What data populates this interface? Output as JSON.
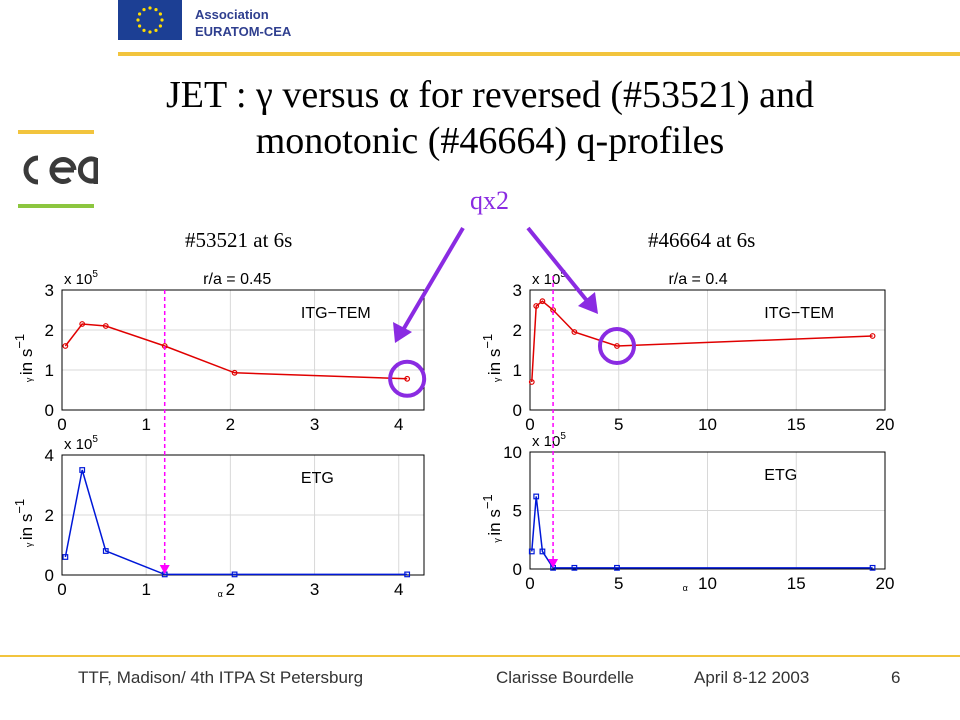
{
  "header": {
    "association_line1": "Association",
    "association_line2": "EURATOM-CEA"
  },
  "title": {
    "line1": "JET : γ versus α for reversed (#53521) and",
    "line2": "monotonic (#46664) q-profiles"
  },
  "annotation": {
    "qx2": "qx2"
  },
  "shots": {
    "left": "#53521 at 6s",
    "right": "#46664 at 6s"
  },
  "footer": {
    "left": "TTF, Madison/ 4th ITPA St Petersburg",
    "center": "Clarisse Bourdelle",
    "date": "April 8-12  2003",
    "page": "6"
  },
  "colors": {
    "itg_series": "#e00000",
    "etg_series": "#0018d8",
    "marker_line": "#ff00ff",
    "highlight": "#8a2be2",
    "rule_yellow": "#f2c43d",
    "cea_green": "#8cc63f"
  },
  "chart_data": [
    {
      "id": "left-top",
      "type": "line",
      "annotation": "r/a = 0.45",
      "label": "ITG−TEM",
      "multiplier": "x 10",
      "exponent": "5",
      "ylabel": "in s",
      "ylabel_exp": "−1",
      "ylabel_prefix": "γ",
      "xlim": [
        0,
        4.3
      ],
      "ylim": [
        0,
        3
      ],
      "xticks": [
        0,
        1,
        2,
        3,
        4
      ],
      "yticks": [
        0,
        1,
        2,
        3
      ],
      "series": [
        {
          "x": [
            0.04,
            0.24,
            0.52,
            1.22,
            2.05,
            4.1
          ],
          "y": [
            1.6,
            2.15,
            2.1,
            1.6,
            0.93,
            0.78
          ]
        }
      ],
      "vline": 1.22,
      "circle_at": [
        4.1,
        0.78
      ]
    },
    {
      "id": "left-bottom",
      "type": "line",
      "label": "ETG",
      "multiplier": "x 10",
      "exponent": "5",
      "ylabel": "in s",
      "ylabel_exp": "−1",
      "ylabel_prefix": "γ",
      "xlabel": "α",
      "xlim": [
        0,
        4.3
      ],
      "ylim": [
        0,
        4
      ],
      "xticks": [
        0,
        1,
        2,
        3,
        4
      ],
      "yticks": [
        0,
        2,
        4
      ],
      "series": [
        {
          "x": [
            0.04,
            0.24,
            0.52,
            1.22,
            2.05,
            4.1
          ],
          "y": [
            0.6,
            3.5,
            0.8,
            0.02,
            0.02,
            0.02
          ]
        }
      ],
      "vline": 1.22
    },
    {
      "id": "right-top",
      "type": "line",
      "annotation": "r/a = 0.4",
      "label": "ITG−TEM",
      "multiplier": "x 10",
      "exponent": "5",
      "ylabel": "in s",
      "ylabel_exp": "−1",
      "ylabel_prefix": "γ",
      "xlim": [
        0,
        20
      ],
      "ylim": [
        0,
        3
      ],
      "xticks": [
        0,
        5,
        10,
        15,
        20
      ],
      "yticks": [
        0,
        1,
        2,
        3
      ],
      "series": [
        {
          "x": [
            0.1,
            0.35,
            0.7,
            1.3,
            2.5,
            4.9,
            19.3
          ],
          "y": [
            0.7,
            2.6,
            2.72,
            2.5,
            1.95,
            1.6,
            1.85
          ]
        }
      ],
      "vline": 1.3,
      "circle_at": [
        4.9,
        1.6
      ]
    },
    {
      "id": "right-bottom",
      "type": "line",
      "label": "ETG",
      "multiplier": "x 10",
      "exponent": "5",
      "ylabel": "in s",
      "ylabel_exp": "−1",
      "ylabel_prefix": "γ",
      "xlabel": "α",
      "xlim": [
        0,
        20
      ],
      "ylim": [
        0,
        10
      ],
      "xticks": [
        0,
        5,
        10,
        15,
        20
      ],
      "yticks": [
        0,
        5,
        10
      ],
      "series": [
        {
          "x": [
            0.1,
            0.35,
            0.7,
            1.3,
            2.5,
            4.9,
            19.3
          ],
          "y": [
            1.5,
            6.2,
            1.5,
            0.1,
            0.1,
            0.1,
            0.1
          ]
        }
      ],
      "vline": 1.3
    }
  ]
}
